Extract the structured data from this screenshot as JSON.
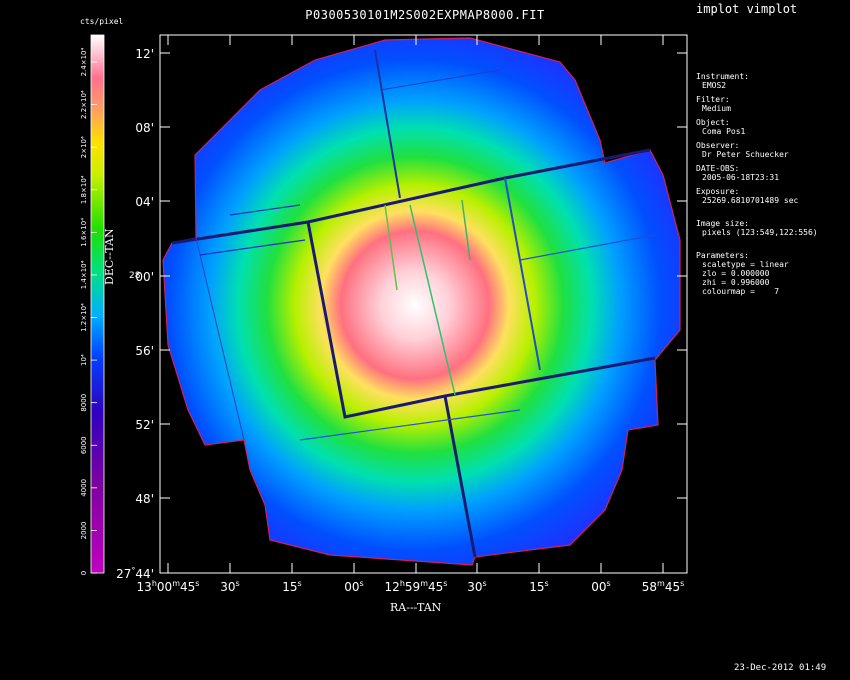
{
  "app_title": "implot vimplot",
  "chart_data": {
    "type": "heatmap",
    "title": "P0300530101M2S002EXPMAP8000.FIT",
    "xlabel": "RA---TAN",
    "ylabel": "DEC--TAN",
    "x_ticks": [
      {
        "h": "13",
        "m": "00",
        "s": "45"
      },
      {
        "s": "30"
      },
      {
        "s": "15"
      },
      {
        "s": "00"
      },
      {
        "h": "12",
        "m": "59",
        "s": "45"
      },
      {
        "s": "30"
      },
      {
        "s": "15"
      },
      {
        "s": "00"
      },
      {
        "m": "58",
        "s": "45"
      }
    ],
    "x_unit_h": "h",
    "x_unit_m": "m",
    "x_unit_s": "s",
    "y_ticks": [
      {
        "deg": "27",
        "min": "44"
      },
      {
        "min": "48"
      },
      {
        "min": "52"
      },
      {
        "min": "56"
      },
      {
        "min": "00",
        "deg_hint": "28"
      },
      {
        "min": "04"
      },
      {
        "min": "08"
      },
      {
        "min": "12"
      }
    ],
    "colorbar": {
      "unit": "cts/pixel",
      "colormap": "rainbow",
      "range": [
        0,
        25269.68
      ],
      "ticks": [
        {
          "value": 0,
          "label": "0"
        },
        {
          "value": 2000,
          "label": "2000"
        },
        {
          "value": 4000,
          "label": "4000"
        },
        {
          "value": 6000,
          "label": "6000"
        },
        {
          "value": 8000,
          "label": "8000"
        },
        {
          "value": 10000,
          "label": "10⁴"
        },
        {
          "value": 12000,
          "label": "1.2×10⁴"
        },
        {
          "value": 14000,
          "label": "1.4×10⁴"
        },
        {
          "value": 16000,
          "label": "1.6×10⁴"
        },
        {
          "value": 18000,
          "label": "1.8×10⁴"
        },
        {
          "value": 20000,
          "label": "2×10⁴"
        },
        {
          "value": 22000,
          "label": "2.2×10⁴"
        },
        {
          "value": 24000,
          "label": "2.4×10⁴"
        }
      ]
    },
    "peak_value": 25269.68
  },
  "info": {
    "instrument_label": "Instrument:",
    "instrument": "EMOS2",
    "filter_label": "Filter:",
    "filter": "Medium",
    "object_label": "Object:",
    "object": "Coma Pos1",
    "observer_label": "Observer:",
    "observer": "Dr Peter Schuecker",
    "date_obs_label": "DATE-OBS:",
    "date_obs": "2005-06-18T23:31",
    "exposure_label": "Exposure:",
    "exposure": "25269.6810701489 sec",
    "image_size_label": "Image size:",
    "image_size": "pixels (123:549,122:556)",
    "parameters_label": "Parameters:",
    "scaletype": "scaletype = linear",
    "zlo": "zlo = 0.000000",
    "zhi": "zhi = 0.996000",
    "colourmap": "colourmap =    7"
  },
  "timestamp": "23-Dec-2012 01:49"
}
